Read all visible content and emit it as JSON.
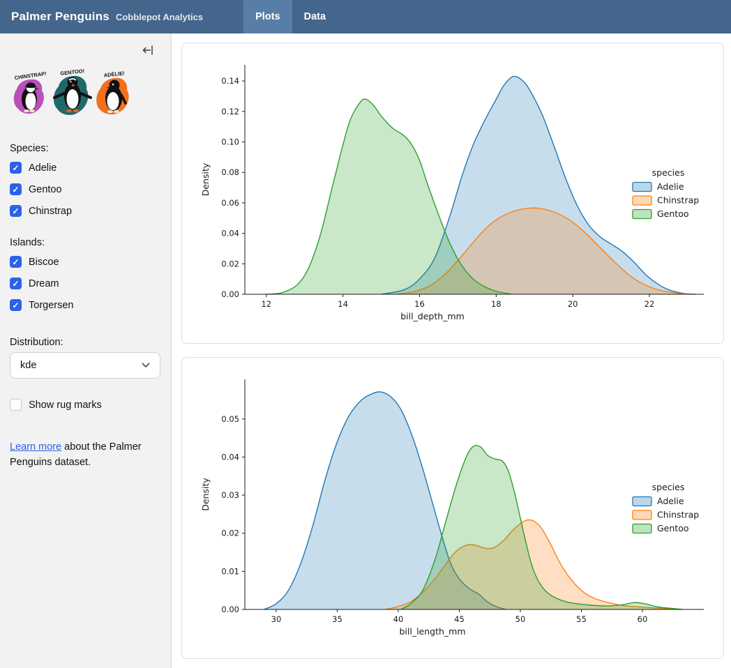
{
  "header": {
    "title": "Palmer Penguins",
    "subtitle": "Cobblepot Analytics",
    "tabs": [
      {
        "label": "Plots",
        "active": true
      },
      {
        "label": "Data",
        "active": false
      }
    ]
  },
  "colors": {
    "header_bg": "#44658c",
    "tab_active_bg": "#587ea8",
    "checkbox_blue": "#2c62e9",
    "link_blue": "#2c62e9",
    "sidebar_bg": "#f2f2f2"
  },
  "sidebar": {
    "collapse_icon": "collapse-sidebar",
    "logo": {
      "penguins": [
        {
          "label": "CHINSTRAP!",
          "splash_color": "#bb4fbc"
        },
        {
          "label": "GENTOO!",
          "splash_color": "#20696b"
        },
        {
          "label": "ADÉLIE!",
          "splash_color": "#f0701f"
        }
      ]
    },
    "species": {
      "label": "Species:",
      "options": [
        {
          "label": "Adelie",
          "checked": true
        },
        {
          "label": "Gentoo",
          "checked": true
        },
        {
          "label": "Chinstrap",
          "checked": true
        }
      ]
    },
    "islands": {
      "label": "Islands:",
      "options": [
        {
          "label": "Biscoe",
          "checked": true
        },
        {
          "label": "Dream",
          "checked": true
        },
        {
          "label": "Torgersen",
          "checked": true
        }
      ]
    },
    "distribution": {
      "label": "Distribution:",
      "value": "kde"
    },
    "rug": {
      "label": "Show rug marks",
      "checked": false
    },
    "footer": {
      "link_label": "Learn more",
      "text": " about the Palmer Penguins dataset."
    }
  },
  "chart_data": [
    {
      "type": "area",
      "kind": "kde-density",
      "xlabel": "bill_depth_mm",
      "ylabel": "Density",
      "xlim": [
        11.44,
        23.42
      ],
      "ylim": [
        0,
        0.1506
      ],
      "xticks": [
        12,
        14,
        16,
        18,
        20,
        22
      ],
      "yticks": [
        0,
        0.02,
        0.04,
        0.06,
        0.08,
        0.1,
        0.12,
        0.14
      ],
      "ytick_labels": [
        "0.00",
        "0.02",
        "0.04",
        "0.06",
        "0.08",
        "0.10",
        "0.12",
        "0.14"
      ],
      "grid": false,
      "legend": {
        "title": "species",
        "position": "right"
      },
      "series": [
        {
          "name": "Adelie",
          "color": "#1f77b4",
          "points": [
            [
              15.0,
              0
            ],
            [
              15.6,
              0.003
            ],
            [
              16.0,
              0.01
            ],
            [
              16.4,
              0.024
            ],
            [
              16.8,
              0.052
            ],
            [
              17.1,
              0.077
            ],
            [
              17.4,
              0.098
            ],
            [
              17.7,
              0.114
            ],
            [
              18.0,
              0.128
            ],
            [
              18.2,
              0.137
            ],
            [
              18.45,
              0.143
            ],
            [
              18.7,
              0.14
            ],
            [
              18.9,
              0.133
            ],
            [
              19.2,
              0.118
            ],
            [
              19.5,
              0.098
            ],
            [
              19.8,
              0.077
            ],
            [
              20.1,
              0.059
            ],
            [
              20.4,
              0.046
            ],
            [
              20.7,
              0.038
            ],
            [
              21.0,
              0.033
            ],
            [
              21.3,
              0.028
            ],
            [
              21.6,
              0.021
            ],
            [
              21.9,
              0.013
            ],
            [
              22.2,
              0.007
            ],
            [
              22.5,
              0.003
            ],
            [
              22.9,
              0.0005
            ],
            [
              23.2,
              0
            ]
          ]
        },
        {
          "name": "Chinstrap",
          "color": "#ff7f0e",
          "points": [
            [
              15.4,
              0
            ],
            [
              15.9,
              0.002
            ],
            [
              16.3,
              0.006
            ],
            [
              16.7,
              0.014
            ],
            [
              17.1,
              0.025
            ],
            [
              17.5,
              0.037
            ],
            [
              17.9,
              0.047
            ],
            [
              18.3,
              0.053
            ],
            [
              18.7,
              0.056
            ],
            [
              19.1,
              0.0565
            ],
            [
              19.5,
              0.054
            ],
            [
              19.9,
              0.049
            ],
            [
              20.3,
              0.041
            ],
            [
              20.7,
              0.031
            ],
            [
              21.1,
              0.021
            ],
            [
              21.5,
              0.012
            ],
            [
              21.9,
              0.006
            ],
            [
              22.3,
              0.0025
            ],
            [
              22.7,
              0.0008
            ],
            [
              23.0,
              0
            ]
          ]
        },
        {
          "name": "Gentoo",
          "color": "#2ca02c",
          "points": [
            [
              12.0,
              0
            ],
            [
              12.4,
              0.001
            ],
            [
              12.8,
              0.006
            ],
            [
              13.1,
              0.017
            ],
            [
              13.4,
              0.038
            ],
            [
              13.7,
              0.068
            ],
            [
              14.0,
              0.098
            ],
            [
              14.2,
              0.115
            ],
            [
              14.45,
              0.126
            ],
            [
              14.6,
              0.128
            ],
            [
              14.8,
              0.124
            ],
            [
              15.0,
              0.117
            ],
            [
              15.3,
              0.109
            ],
            [
              15.6,
              0.104
            ],
            [
              15.8,
              0.098
            ],
            [
              16.0,
              0.088
            ],
            [
              16.2,
              0.073
            ],
            [
              16.5,
              0.052
            ],
            [
              16.8,
              0.033
            ],
            [
              17.1,
              0.019
            ],
            [
              17.4,
              0.01
            ],
            [
              17.7,
              0.005
            ],
            [
              18.0,
              0.002
            ],
            [
              18.4,
              0
            ]
          ]
        }
      ]
    },
    {
      "type": "area",
      "kind": "kde-density",
      "xlabel": "bill_length_mm",
      "ylabel": "Density",
      "xlim": [
        27.43,
        65.03
      ],
      "ylim": [
        0,
        0.0604
      ],
      "xticks": [
        30,
        35,
        40,
        45,
        50,
        55,
        60
      ],
      "yticks": [
        0,
        0.01,
        0.02,
        0.03,
        0.04,
        0.05
      ],
      "ytick_labels": [
        "0.00",
        "0.01",
        "0.02",
        "0.03",
        "0.04",
        "0.05"
      ],
      "grid": false,
      "legend": {
        "title": "species",
        "position": "right"
      },
      "series": [
        {
          "name": "Adelie",
          "color": "#1f77b4",
          "points": [
            [
              29.0,
              0
            ],
            [
              30.0,
              0.0015
            ],
            [
              31.0,
              0.005
            ],
            [
              32.0,
              0.012
            ],
            [
              33.0,
              0.022
            ],
            [
              34.0,
              0.034
            ],
            [
              35.0,
              0.044
            ],
            [
              36.0,
              0.051
            ],
            [
              37.0,
              0.055
            ],
            [
              38.0,
              0.0568
            ],
            [
              38.7,
              0.057
            ],
            [
              39.5,
              0.0555
            ],
            [
              40.3,
              0.052
            ],
            [
              41.2,
              0.045
            ],
            [
              42.0,
              0.037
            ],
            [
              42.8,
              0.028
            ],
            [
              43.6,
              0.019
            ],
            [
              44.3,
              0.012
            ],
            [
              45.0,
              0.008
            ],
            [
              45.8,
              0.0055
            ],
            [
              46.6,
              0.004
            ],
            [
              47.3,
              0.002
            ],
            [
              48.0,
              0.0008
            ],
            [
              48.8,
              0
            ]
          ]
        },
        {
          "name": "Chinstrap",
          "color": "#ff7f0e",
          "points": [
            [
              39.0,
              0
            ],
            [
              40.0,
              0.0008
            ],
            [
              41.0,
              0.002
            ],
            [
              42.0,
              0.0045
            ],
            [
              43.0,
              0.008
            ],
            [
              43.8,
              0.0115
            ],
            [
              44.6,
              0.0148
            ],
            [
              45.3,
              0.0165
            ],
            [
              45.9,
              0.017
            ],
            [
              46.5,
              0.0167
            ],
            [
              47.2,
              0.016
            ],
            [
              47.9,
              0.0163
            ],
            [
              48.6,
              0.018
            ],
            [
              49.3,
              0.0205
            ],
            [
              50.0,
              0.0225
            ],
            [
              50.6,
              0.0235
            ],
            [
              51.2,
              0.023
            ],
            [
              51.8,
              0.021
            ],
            [
              52.5,
              0.017
            ],
            [
              53.2,
              0.0125
            ],
            [
              54.0,
              0.0085
            ],
            [
              55.0,
              0.005
            ],
            [
              56.0,
              0.003
            ],
            [
              57.2,
              0.0018
            ],
            [
              58.5,
              0.001
            ],
            [
              60.0,
              0.0006
            ],
            [
              61.5,
              0.0003
            ],
            [
              63.0,
              0
            ]
          ]
        },
        {
          "name": "Gentoo",
          "color": "#2ca02c",
          "points": [
            [
              40.2,
              0
            ],
            [
              41.0,
              0.0015
            ],
            [
              42.0,
              0.005
            ],
            [
              43.0,
              0.013
            ],
            [
              43.8,
              0.022
            ],
            [
              44.5,
              0.03
            ],
            [
              45.2,
              0.037
            ],
            [
              45.8,
              0.0415
            ],
            [
              46.3,
              0.043
            ],
            [
              46.8,
              0.0425
            ],
            [
              47.3,
              0.0405
            ],
            [
              47.9,
              0.0395
            ],
            [
              48.5,
              0.039
            ],
            [
              49.0,
              0.0365
            ],
            [
              49.5,
              0.031
            ],
            [
              50.0,
              0.024
            ],
            [
              50.5,
              0.017
            ],
            [
              51.0,
              0.011
            ],
            [
              51.6,
              0.0068
            ],
            [
              52.3,
              0.0042
            ],
            [
              53.2,
              0.0026
            ],
            [
              54.2,
              0.0017
            ],
            [
              55.5,
              0.0012
            ],
            [
              57.0,
              0.0009
            ],
            [
              58.3,
              0.0012
            ],
            [
              59.3,
              0.0018
            ],
            [
              60.2,
              0.0015
            ],
            [
              61.2,
              0.0007
            ],
            [
              62.3,
              0.0003
            ],
            [
              63.3,
              0
            ]
          ]
        }
      ]
    }
  ]
}
